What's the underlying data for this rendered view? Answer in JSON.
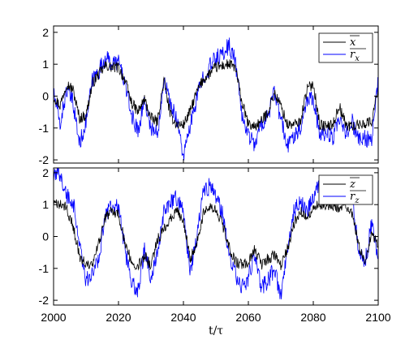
{
  "chart_data": [
    {
      "type": "line",
      "panel": "top",
      "xlim": [
        2000,
        2100
      ],
      "ylim": [
        -2.1,
        2.2
      ],
      "yticks": [
        "-2",
        "-1",
        "0",
        "1",
        "2"
      ],
      "grid": false,
      "legend_position": "top-right",
      "series": [
        {
          "name": "x",
          "color": "#000000",
          "x": [
            2000,
            2002,
            2004,
            2006,
            2008,
            2010,
            2012,
            2014,
            2016,
            2018,
            2020,
            2022,
            2024,
            2026,
            2028,
            2030,
            2032,
            2034,
            2036,
            2038,
            2040,
            2042,
            2044,
            2046,
            2048,
            2050,
            2052,
            2054,
            2056,
            2058,
            2060,
            2062,
            2064,
            2066,
            2068,
            2070,
            2072,
            2074,
            2076,
            2078,
            2080,
            2082,
            2084,
            2086,
            2088,
            2090,
            2092,
            2094,
            2096,
            2098,
            2100
          ],
          "y": [
            0.0,
            -0.3,
            0.4,
            0.2,
            -0.7,
            -0.6,
            0.4,
            0.7,
            0.95,
            0.9,
            0.9,
            0.5,
            -0.2,
            -0.5,
            -0.1,
            -0.7,
            -0.8,
            0.5,
            -0.6,
            -0.9,
            -0.9,
            -0.5,
            0.1,
            0.5,
            0.7,
            0.9,
            0.95,
            1.0,
            0.9,
            -0.2,
            -0.9,
            -0.95,
            -0.8,
            -0.5,
            0.1,
            -0.3,
            -0.9,
            -0.9,
            -0.8,
            0.2,
            0.4,
            -0.9,
            -0.95,
            -0.9,
            -0.3,
            -0.9,
            -0.95,
            -0.9,
            -0.85,
            -0.8,
            0.3
          ]
        },
        {
          "name": "r_x",
          "label_main": "r",
          "label_sub": "x",
          "color": "#0000ff",
          "x": [
            2000,
            2002,
            2004,
            2006,
            2008,
            2010,
            2012,
            2014,
            2016,
            2018,
            2020,
            2022,
            2024,
            2026,
            2028,
            2030,
            2032,
            2034,
            2036,
            2038,
            2040,
            2042,
            2044,
            2046,
            2048,
            2050,
            2052,
            2054,
            2056,
            2058,
            2060,
            2062,
            2064,
            2066,
            2068,
            2070,
            2072,
            2074,
            2076,
            2078,
            2080,
            2082,
            2084,
            2086,
            2088,
            2090,
            2092,
            2094,
            2096,
            2098,
            2100
          ],
          "y": [
            0.1,
            -0.9,
            0.2,
            -0.2,
            -1.5,
            -0.8,
            0.5,
            0.8,
            1.2,
            1.0,
            1.1,
            0.4,
            -0.6,
            -1.1,
            -0.1,
            -1.0,
            -1.2,
            0.6,
            -0.3,
            -0.7,
            -1.9,
            -1.0,
            -0.1,
            0.6,
            0.9,
            1.2,
            1.3,
            1.6,
            1.1,
            -0.6,
            -1.2,
            -1.5,
            -0.9,
            -0.6,
            0.1,
            -0.7,
            -1.6,
            -1.2,
            -1.0,
            -0.1,
            0.0,
            -1.3,
            -1.1,
            -1.3,
            -0.8,
            -1.2,
            -0.8,
            -1.4,
            -1.3,
            -1.4,
            0.5
          ]
        }
      ]
    },
    {
      "type": "line",
      "panel": "bottom",
      "xlim": [
        2000,
        2100
      ],
      "ylim": [
        -2.15,
        2.15
      ],
      "xticks": [
        "2000",
        "2020",
        "2040",
        "2060",
        "2080",
        "2100"
      ],
      "yticks": [
        "-2",
        "-1",
        "0",
        "1",
        "2"
      ],
      "xlabel": "t/τ",
      "grid": false,
      "legend_position": "top-right",
      "series": [
        {
          "name": "z",
          "color": "#000000",
          "x": [
            2000,
            2002,
            2004,
            2006,
            2008,
            2010,
            2012,
            2014,
            2016,
            2018,
            2020,
            2022,
            2024,
            2026,
            2028,
            2030,
            2032,
            2034,
            2036,
            2038,
            2040,
            2042,
            2044,
            2046,
            2048,
            2050,
            2052,
            2054,
            2056,
            2058,
            2060,
            2062,
            2064,
            2066,
            2068,
            2070,
            2072,
            2074,
            2076,
            2078,
            2080,
            2082,
            2084,
            2086,
            2088,
            2090,
            2092,
            2094,
            2096,
            2098,
            2100
          ],
          "y": [
            1.0,
            1.0,
            0.9,
            0.3,
            -0.6,
            -0.9,
            -0.9,
            -0.2,
            0.6,
            0.8,
            0.7,
            -0.2,
            -0.8,
            -0.9,
            -0.6,
            -0.9,
            -0.1,
            0.2,
            0.6,
            0.8,
            0.5,
            -0.7,
            -0.3,
            0.7,
            0.9,
            0.8,
            0.4,
            -0.3,
            -0.8,
            -0.9,
            -0.8,
            -0.4,
            -0.9,
            -0.7,
            -0.6,
            -0.9,
            -0.4,
            0.4,
            0.8,
            0.6,
            0.9,
            1.0,
            1.0,
            1.0,
            0.9,
            1.0,
            0.7,
            -0.3,
            -0.9,
            0.1,
            -0.3
          ]
        },
        {
          "name": "r_z",
          "label_main": "r",
          "label_sub": "z",
          "color": "#0000ff",
          "x": [
            2000,
            2002,
            2004,
            2006,
            2008,
            2010,
            2012,
            2014,
            2016,
            2018,
            2020,
            2022,
            2024,
            2026,
            2028,
            2030,
            2032,
            2034,
            2036,
            2038,
            2040,
            2042,
            2044,
            2046,
            2048,
            2050,
            2052,
            2054,
            2056,
            2058,
            2060,
            2062,
            2064,
            2066,
            2068,
            2070,
            2072,
            2074,
            2076,
            2078,
            2080,
            2082,
            2084,
            2086,
            2088,
            2090,
            2092,
            2094,
            2096,
            2098,
            2100
          ],
          "y": [
            1.8,
            2.0,
            1.3,
            1.1,
            -0.2,
            -1.4,
            -1.2,
            -0.6,
            0.7,
            1.0,
            0.9,
            -0.4,
            -1.5,
            -1.7,
            -0.4,
            -1.3,
            -0.5,
            0.8,
            1.1,
            1.2,
            0.8,
            -1.1,
            -0.1,
            1.3,
            1.6,
            1.3,
            0.7,
            -0.6,
            -1.2,
            -1.6,
            -1.3,
            -0.5,
            -1.6,
            -1.4,
            -1.0,
            -1.9,
            -0.4,
            0.8,
            1.1,
            0.7,
            1.3,
            1.6,
            1.5,
            1.7,
            1.4,
            1.3,
            1.2,
            -0.5,
            -0.8,
            0.4,
            -0.6
          ]
        }
      ]
    }
  ]
}
